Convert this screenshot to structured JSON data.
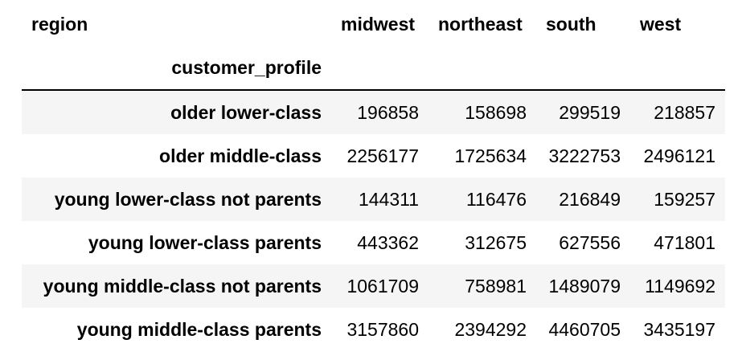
{
  "table": {
    "columns_name": "region",
    "index_name": "customer_profile",
    "columns": [
      "midwest",
      "northeast",
      "south",
      "west"
    ],
    "rows": [
      {
        "label": "older lower-class",
        "values": [
          "196858",
          "158698",
          "299519",
          "218857"
        ]
      },
      {
        "label": "older middle-class",
        "values": [
          "2256177",
          "1725634",
          "3222753",
          "2496121"
        ]
      },
      {
        "label": "young lower-class not parents",
        "values": [
          "144311",
          "116476",
          "216849",
          "159257"
        ]
      },
      {
        "label": "young lower-class parents",
        "values": [
          "443362",
          "312675",
          "627556",
          "471801"
        ]
      },
      {
        "label": "young middle-class not parents",
        "values": [
          "1061709",
          "758981",
          "1489079",
          "1149692"
        ]
      },
      {
        "label": "young middle-class parents",
        "values": [
          "3157860",
          "2394292",
          "4460705",
          "3435197"
        ]
      }
    ]
  }
}
